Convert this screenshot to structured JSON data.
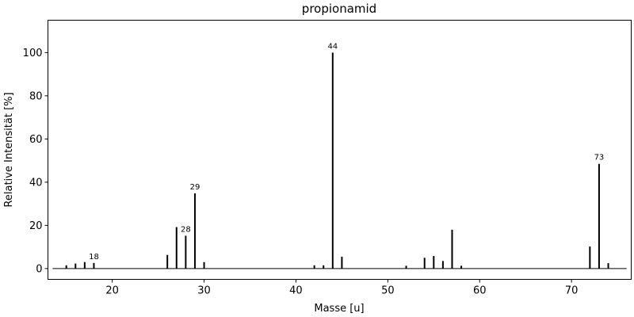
{
  "chart_data": {
    "type": "bar",
    "title": "propionamid",
    "xlabel": "Masse [u]",
    "ylabel": "Relative Intensität [%]",
    "xlim": [
      13,
      76.5
    ],
    "ylim": [
      -5,
      115
    ],
    "xticks": [
      20,
      30,
      40,
      50,
      60,
      70
    ],
    "yticks": [
      0,
      20,
      40,
      60,
      80,
      100
    ],
    "grid": false,
    "bar_color": "#000000",
    "peaks": [
      {
        "x": 15,
        "y": 1.5
      },
      {
        "x": 16,
        "y": 2.3
      },
      {
        "x": 17,
        "y": 3.0
      },
      {
        "x": 18,
        "y": 2.6,
        "label": "18"
      },
      {
        "x": 26,
        "y": 6.3
      },
      {
        "x": 27,
        "y": 19.2
      },
      {
        "x": 28,
        "y": 15.2,
        "label": "28"
      },
      {
        "x": 29,
        "y": 34.8,
        "label": "29"
      },
      {
        "x": 30,
        "y": 3.0
      },
      {
        "x": 42,
        "y": 1.5
      },
      {
        "x": 43,
        "y": 1.5
      },
      {
        "x": 44,
        "y": 100,
        "label": "44"
      },
      {
        "x": 45,
        "y": 5.5
      },
      {
        "x": 52,
        "y": 1.3
      },
      {
        "x": 54,
        "y": 5.0
      },
      {
        "x": 55,
        "y": 5.8
      },
      {
        "x": 56,
        "y": 3.5
      },
      {
        "x": 57,
        "y": 18.0
      },
      {
        "x": 58,
        "y": 1.3
      },
      {
        "x": 72,
        "y": 10.2
      },
      {
        "x": 73,
        "y": 48.5,
        "label": "73"
      },
      {
        "x": 74,
        "y": 2.5
      }
    ]
  }
}
